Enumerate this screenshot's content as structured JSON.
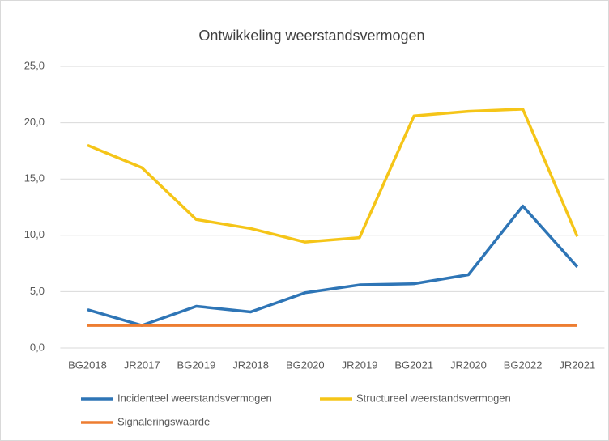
{
  "chart_data": {
    "type": "line",
    "title": "Ontwikkeling weerstandsvermogen",
    "categories": [
      "BG2018",
      "JR2017",
      "BG2019",
      "JR2018",
      "BG2020",
      "JR2019",
      "BG2021",
      "JR2020",
      "BG2022",
      "JR2021"
    ],
    "series": [
      {
        "name": "Incidenteel weerstandsvermogen",
        "color": "#2e75b6",
        "values": [
          3.4,
          2.0,
          3.7,
          3.2,
          4.9,
          5.6,
          5.7,
          6.5,
          12.6,
          7.2
        ]
      },
      {
        "name": "Structureel weerstandsvermogen",
        "color": "#f5c518",
        "values": [
          18.0,
          16.0,
          11.4,
          10.6,
          9.4,
          9.8,
          20.6,
          21.0,
          21.2,
          9.9
        ]
      },
      {
        "name": "Signaleringswaarde",
        "color": "#ed7d31",
        "values": [
          2.0,
          2.0,
          2.0,
          2.0,
          2.0,
          2.0,
          2.0,
          2.0,
          2.0,
          2.0
        ]
      }
    ],
    "ylim": [
      0,
      25
    ],
    "yticks": [
      {
        "value": 0,
        "label": "0,0"
      },
      {
        "value": 5,
        "label": "5,0"
      },
      {
        "value": 10,
        "label": "10,0"
      },
      {
        "value": 15,
        "label": "15,0"
      },
      {
        "value": 20,
        "label": "20,0"
      },
      {
        "value": 25,
        "label": "25,0"
      }
    ],
    "grid": true
  }
}
